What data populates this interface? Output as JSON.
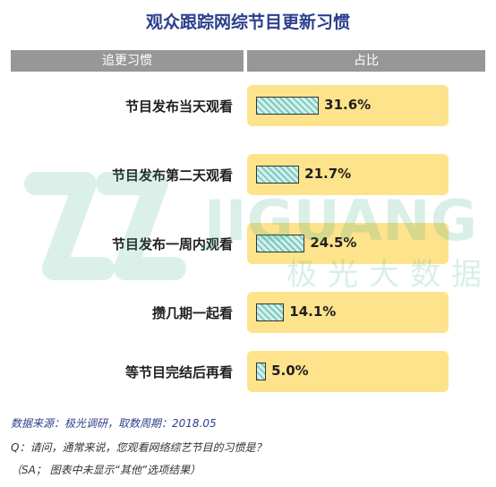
{
  "chart_data": {
    "type": "bar",
    "orientation": "horizontal",
    "title": "观众跟踪网综节目更新习惯",
    "column_headers": [
      "追更习惯",
      "占比"
    ],
    "categories": [
      "节目发布当天观看",
      "节目发布第二天观看",
      "节目发布一周内观看",
      "攒几期一起看",
      "等节目完结后再看"
    ],
    "values": [
      31.6,
      21.7,
      24.5,
      14.1,
      5.0
    ],
    "value_labels": [
      "31.6%",
      "21.7%",
      "24.5%",
      "14.1%",
      "5.0%"
    ],
    "xlim": [
      0,
      100
    ],
    "grid": false,
    "legend": "none"
  },
  "watermark": {
    "brand_en": "JIGUANG",
    "brand_cn": "极光大数据"
  },
  "footer": {
    "source": "数据来源：极光调研，取数周期：2018.05",
    "question": "Q：请问，通常来说，您观看网络综艺节目的习惯是？",
    "note": "（SA； 图表中未显示“其他”选项结果）"
  },
  "colors": {
    "title": "#2c3f8c",
    "header_bg": "#979797",
    "row_bg": "#fde38c",
    "bar_fill": "#7cc9bf",
    "watermark": "#3fae8c"
  }
}
